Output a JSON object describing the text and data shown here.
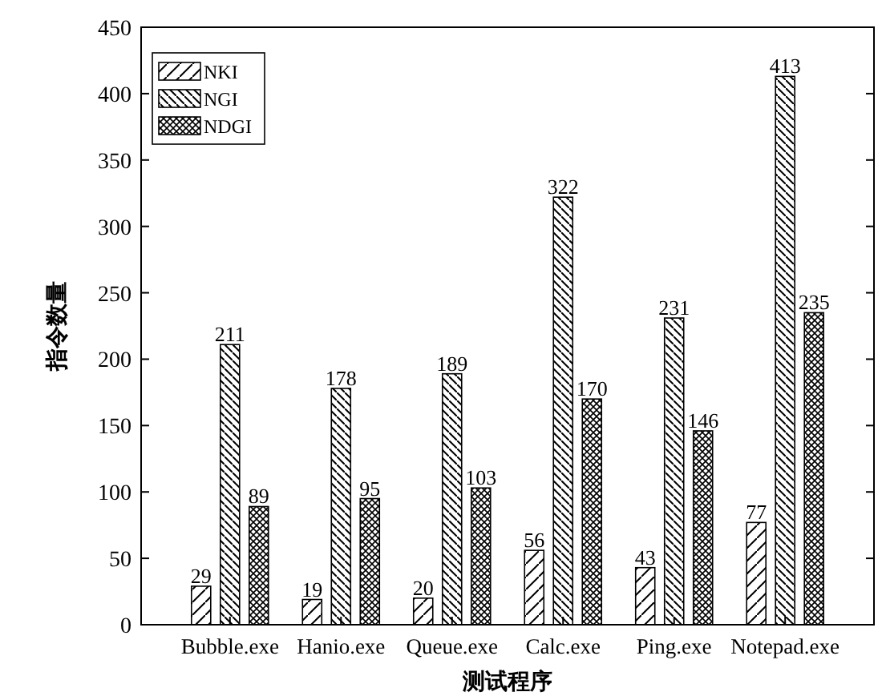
{
  "chart_data": {
    "type": "bar",
    "xlabel": "测试程序",
    "ylabel": "指令数量",
    "categories": [
      "Bubble.exe",
      "Hanio.exe",
      "Queue.exe",
      "Calc.exe",
      "Ping.exe",
      "Notepad.exe"
    ],
    "series": [
      {
        "name": "NKI",
        "color": "#000000",
        "values": [
          29,
          19,
          20,
          56,
          43,
          77
        ]
      },
      {
        "name": "NGI",
        "color": "#000000",
        "values": [
          211,
          178,
          189,
          322,
          231,
          413
        ]
      },
      {
        "name": "NDGI",
        "color": "#000000",
        "values": [
          89,
          95,
          103,
          170,
          146,
          235
        ]
      }
    ],
    "ylim": [
      0,
      450
    ],
    "yticks": [
      0,
      50,
      100,
      150,
      200,
      250,
      300,
      350,
      400,
      450
    ],
    "data_labels": true,
    "legend": "top left",
    "grid": false
  }
}
